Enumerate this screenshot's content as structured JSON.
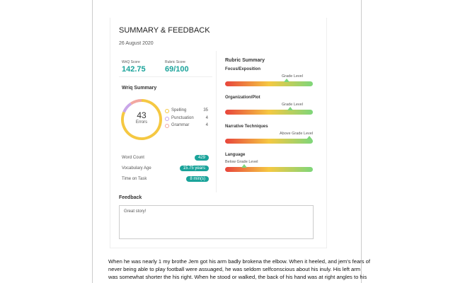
{
  "header": {
    "title": "SUMMARY & FEEDBACK",
    "date": "26 August 2020"
  },
  "scores": [
    {
      "label": "WriQ Score",
      "value": "142.75"
    },
    {
      "label": "Rubric Score",
      "value": "69/100"
    }
  ],
  "summary": {
    "title": "Wriq Summary",
    "total": "43",
    "total_label": "Errors",
    "errors": [
      {
        "name": "Spelling",
        "count": 35,
        "color": "#f5c842"
      },
      {
        "name": "Punctuation",
        "count": 4,
        "color": "#c9a6e8"
      },
      {
        "name": "Grammar",
        "count": 4,
        "color": "#f2a7a0"
      }
    ],
    "stats": [
      {
        "label": "Word Count",
        "value": "429"
      },
      {
        "label": "Vocabulary Age",
        "value": "15.75 years"
      },
      {
        "label": "Time on Task",
        "value": "8 min(s)"
      }
    ]
  },
  "rubric": {
    "title": "Rubric Summary",
    "items": [
      {
        "name": "Focus/Exposition",
        "level": "Grade Level"
      },
      {
        "name": "Organization/Plot",
        "level": "Grade Level"
      },
      {
        "name": "Narrative Techniques",
        "level": "Above Grade Level"
      },
      {
        "name": "Language",
        "level": "Below Grade Level"
      }
    ]
  },
  "feedback": {
    "title": "Feedback",
    "text": "Great story!"
  },
  "document": {
    "lines": [
      "When he was nearly 1 my brothe Jem got his arm badly brokena the elbow.  When it heeled, and jem's fears of",
      "never being able to play football were assuaged, he was seldom selfconscious about his inuly.  His left arm",
      "was somewhat shorter the his right.  When he stood or walked, the back of his hand was at right angles to his"
    ]
  }
}
